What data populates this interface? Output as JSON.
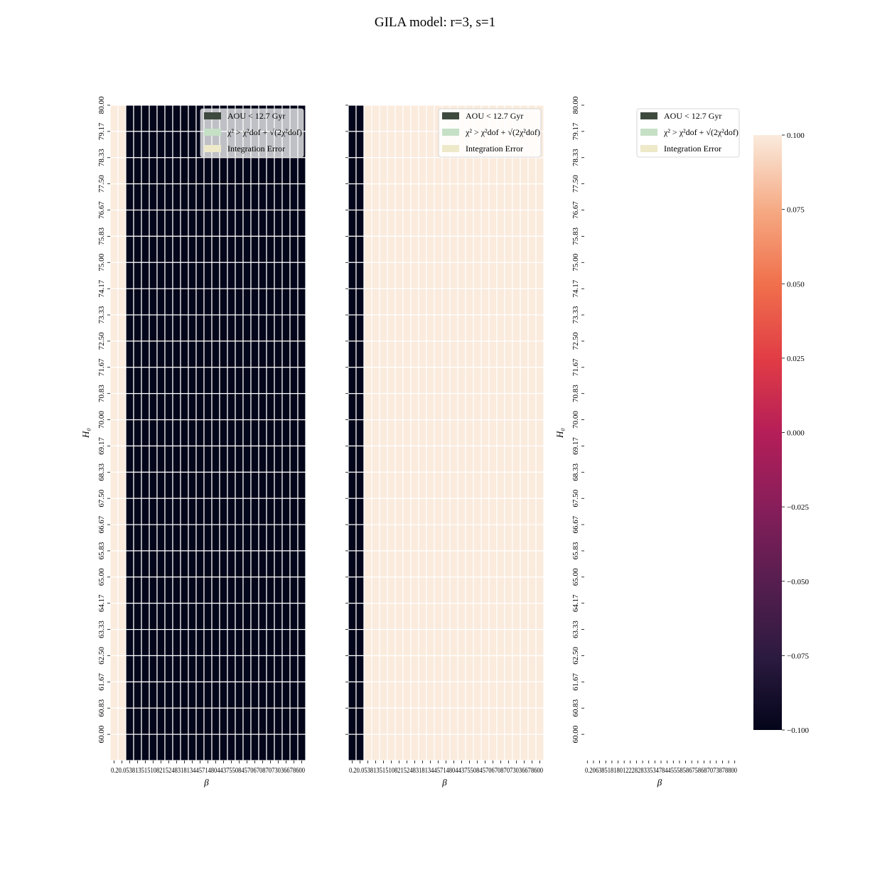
{
  "title": "GILA model: r=3, s=1",
  "colors": {
    "dark_cell": "#03051a",
    "light_cell": "#faebdd",
    "grid_line": "#ffffff",
    "legend_aou": "#3f4a3f",
    "legend_chi": "#c6e0c6",
    "legend_int": "#ede9c9"
  },
  "legend": {
    "items": [
      {
        "label": "AOU < 12.7 Gyr",
        "color_key": "legend_aou"
      },
      {
        "label": "χ² > χ²dof + √(2χ²dof)",
        "color_key": "legend_chi"
      },
      {
        "label": "Integration Error",
        "color_key": "legend_int"
      }
    ]
  },
  "colorbar": {
    "ticks": [
      "0.100",
      "0.075",
      "0.050",
      "0.025",
      "0.000",
      "−0.025",
      "−0.050",
      "−0.075",
      "−0.100"
    ],
    "values": [
      0.1,
      0.075,
      0.05,
      0.025,
      0.0,
      -0.025,
      -0.05,
      -0.075,
      -0.1
    ]
  },
  "chart_data": [
    {
      "type": "heatmap",
      "panel": "left",
      "xlabel": "β",
      "ylabel": "H₀",
      "y_ticks": [
        "80.00",
        "79.17",
        "78.33",
        "77.50",
        "76.67",
        "75.83",
        "75.00",
        "74.17",
        "73.33",
        "72.50",
        "71.67",
        "70.83",
        "70.00",
        "69.17",
        "68.33",
        "67.50",
        "66.67",
        "65.83",
        "65.00",
        "64.17",
        "63.33",
        "62.50",
        "61.67",
        "60.83",
        "60.00"
      ],
      "n_columns": 25,
      "x_tick_text": "0.20.053813515108215248318134457148044375508457067087073036678600",
      "cells": "first 2 columns light (value above range), remaining 23 columns dark (AOU < 12.7 Gyr)",
      "light_columns": [
        0,
        1
      ],
      "dark_columns_from": 2
    },
    {
      "type": "heatmap",
      "panel": "middle",
      "xlabel": "β",
      "ylabel": "",
      "n_columns": 25,
      "x_tick_text": "0.20.053813515108215248318134457148044375508457067087073036678600",
      "cells": "first 2 columns dark, remaining 23 columns light",
      "dark_columns": [
        0,
        1
      ],
      "light_columns_from": 2
    },
    {
      "type": "heatmap",
      "panel": "right",
      "xlabel": "β",
      "ylabel": "H₀",
      "y_ticks": [
        "80.00",
        "79.17",
        "78.33",
        "77.50",
        "76.67",
        "75.83",
        "75.00",
        "74.17",
        "73.33",
        "72.50",
        "71.67",
        "70.83",
        "70.00",
        "69.17",
        "68.33",
        "67.50",
        "66.67",
        "65.83",
        "65.00",
        "64.17",
        "63.33",
        "62.50",
        "61.67",
        "60.83",
        "60.00"
      ],
      "n_columns": 25,
      "x_tick_text": "0.2063851818012228283353478445558586758687073878800",
      "cells": "empty (no data drawn)"
    }
  ]
}
